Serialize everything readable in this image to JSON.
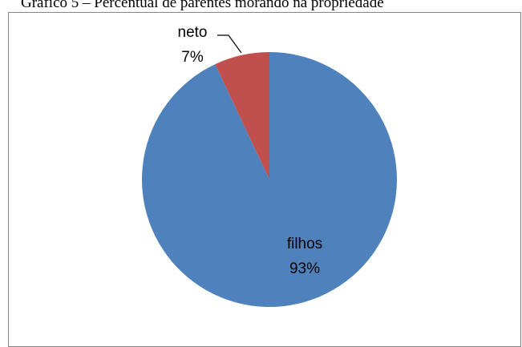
{
  "chart_data": {
    "type": "pie",
    "title": "Gráfico 5 – Percentual de parentes morando na propriedade",
    "categories": [
      "filhos",
      "neto"
    ],
    "values": [
      93,
      7
    ],
    "labels": [
      {
        "category": "filhos",
        "percent": "93%"
      },
      {
        "category": "neto",
        "percent": "7%"
      }
    ],
    "colors": [
      "#4F81BD",
      "#C0504D"
    ],
    "legend": "none"
  }
}
